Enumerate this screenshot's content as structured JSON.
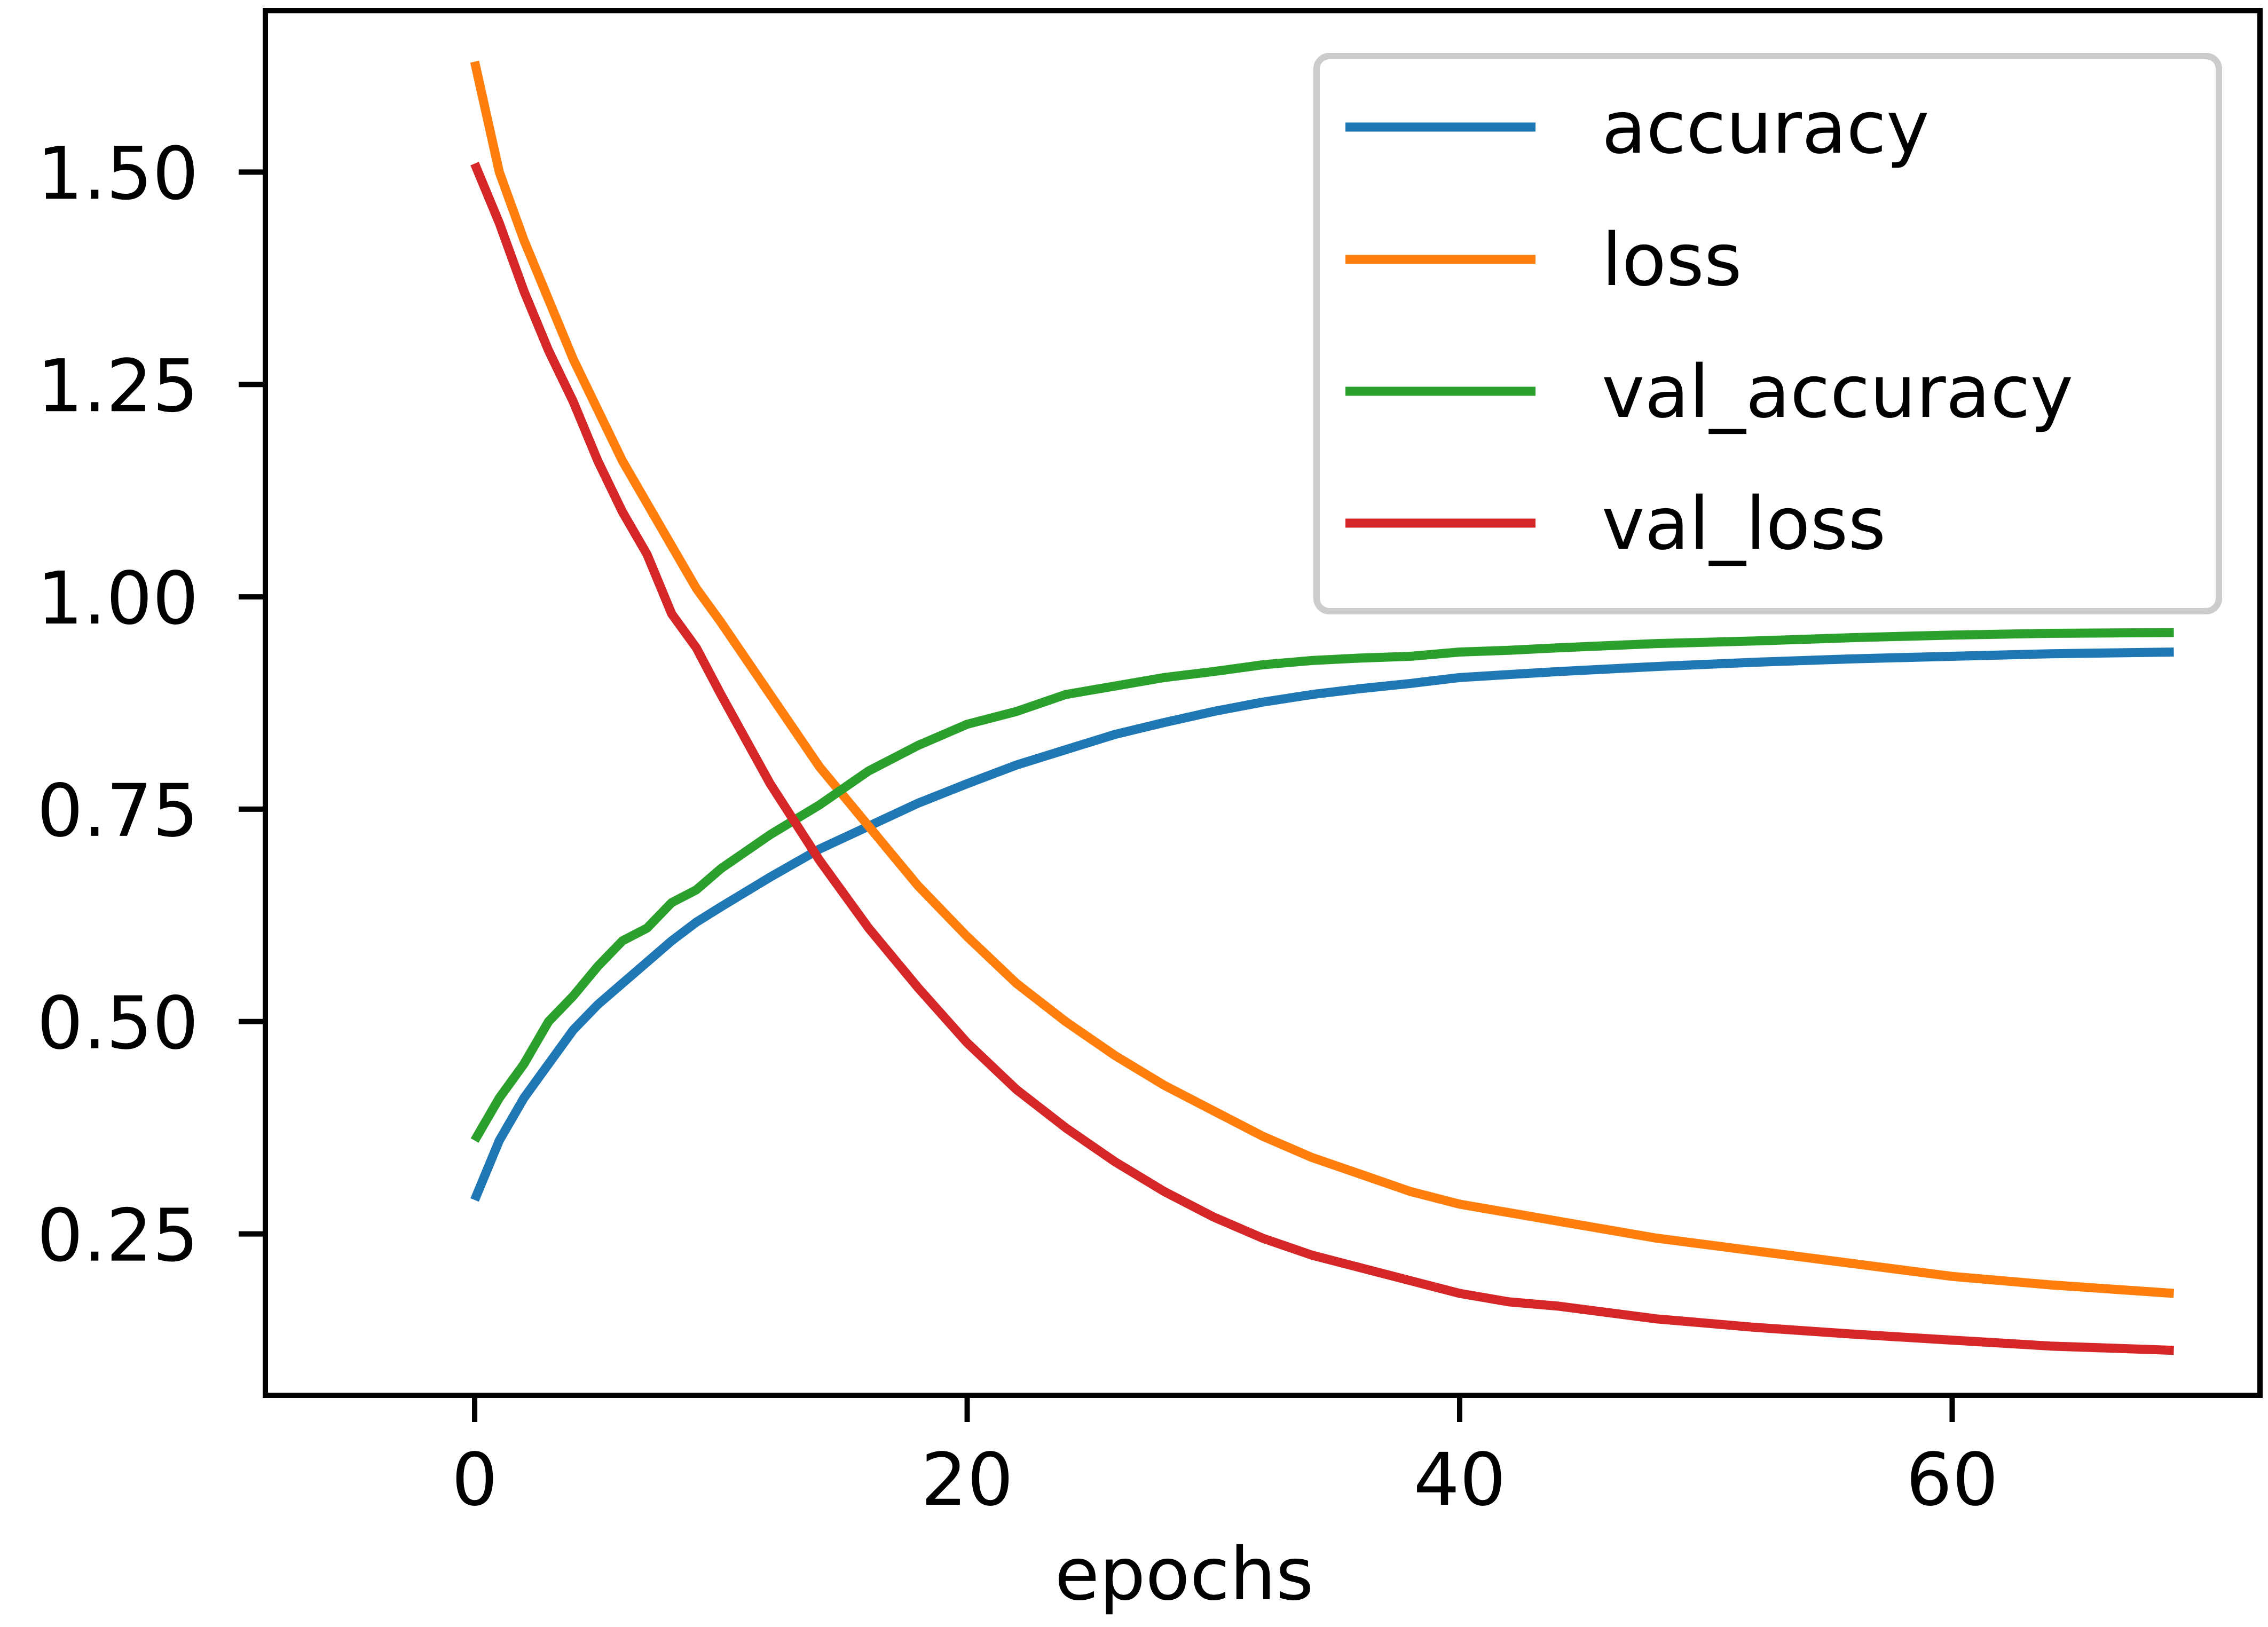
{
  "chart_data": {
    "type": "line",
    "title": "",
    "xlabel": "epochs",
    "ylabel": "",
    "xlim": [
      -8.5,
      72.5
    ],
    "ylim": [
      0.06,
      1.69
    ],
    "xticks": [
      0,
      20,
      40,
      60
    ],
    "xtick_labels": [
      "0",
      "20",
      "40",
      "60"
    ],
    "yticks": [
      0.25,
      0.5,
      0.75,
      1.0,
      1.25,
      1.5
    ],
    "ytick_labels": [
      "0.25",
      "0.50",
      "0.75",
      "1.00",
      "1.25",
      "1.50"
    ],
    "grid": false,
    "legend_position": "top-right",
    "series": [
      {
        "name": "accuracy",
        "color": "#1f77b4",
        "x_points": [
          0,
          1,
          2,
          3,
          4,
          5,
          6,
          7,
          8,
          9,
          10,
          12,
          14,
          16,
          18,
          20,
          22,
          24,
          26,
          28,
          30,
          32,
          34,
          36,
          38,
          40,
          44,
          48,
          52,
          56,
          60,
          64,
          69
        ],
        "values": [
          0.29,
          0.36,
          0.41,
          0.45,
          0.49,
          0.52,
          0.545,
          0.57,
          0.595,
          0.617,
          0.635,
          0.67,
          0.703,
          0.73,
          0.757,
          0.78,
          0.802,
          0.82,
          0.838,
          0.852,
          0.865,
          0.876,
          0.885,
          0.892,
          0.898,
          0.905,
          0.912,
          0.918,
          0.923,
          0.927,
          0.93,
          0.933,
          0.935
        ]
      },
      {
        "name": "loss",
        "color": "#ff7f0e",
        "x_points": [
          0,
          1,
          2,
          3,
          4,
          5,
          6,
          7,
          8,
          9,
          10,
          12,
          14,
          16,
          18,
          20,
          22,
          24,
          26,
          28,
          30,
          32,
          34,
          36,
          38,
          40,
          42,
          44,
          48,
          52,
          56,
          60,
          64,
          69
        ],
        "values": [
          1.63,
          1.5,
          1.42,
          1.35,
          1.28,
          1.22,
          1.16,
          1.11,
          1.06,
          1.01,
          0.97,
          0.885,
          0.8,
          0.73,
          0.66,
          0.6,
          0.545,
          0.5,
          0.46,
          0.425,
          0.395,
          0.365,
          0.34,
          0.32,
          0.3,
          0.285,
          0.275,
          0.265,
          0.245,
          0.23,
          0.215,
          0.2,
          0.19,
          0.18
        ]
      },
      {
        "name": "val_accuracy",
        "color": "#2ca02c",
        "x_points": [
          0,
          1,
          2,
          3,
          4,
          5,
          6,
          7,
          8,
          9,
          10,
          12,
          14,
          16,
          18,
          20,
          22,
          24,
          26,
          28,
          30,
          32,
          34,
          36,
          38,
          40,
          42,
          44,
          48,
          52,
          56,
          60,
          64,
          69
        ],
        "values": [
          0.36,
          0.41,
          0.45,
          0.5,
          0.53,
          0.565,
          0.595,
          0.61,
          0.64,
          0.655,
          0.68,
          0.72,
          0.755,
          0.795,
          0.825,
          0.85,
          0.865,
          0.885,
          0.895,
          0.905,
          0.912,
          0.92,
          0.925,
          0.928,
          0.93,
          0.935,
          0.937,
          0.94,
          0.945,
          0.948,
          0.952,
          0.955,
          0.957,
          0.958
        ]
      },
      {
        "name": "val_loss",
        "color": "#d62728",
        "x_points": [
          0,
          1,
          2,
          3,
          4,
          5,
          6,
          7,
          8,
          9,
          10,
          12,
          14,
          16,
          18,
          20,
          22,
          24,
          26,
          28,
          30,
          32,
          34,
          36,
          38,
          40,
          42,
          44,
          48,
          52,
          56,
          60,
          64,
          69
        ],
        "values": [
          1.51,
          1.44,
          1.36,
          1.29,
          1.23,
          1.16,
          1.1,
          1.05,
          0.98,
          0.94,
          0.885,
          0.78,
          0.69,
          0.61,
          0.54,
          0.475,
          0.42,
          0.375,
          0.335,
          0.3,
          0.27,
          0.245,
          0.225,
          0.21,
          0.195,
          0.18,
          0.17,
          0.165,
          0.15,
          0.14,
          0.132,
          0.125,
          0.118,
          0.113
        ]
      }
    ]
  }
}
